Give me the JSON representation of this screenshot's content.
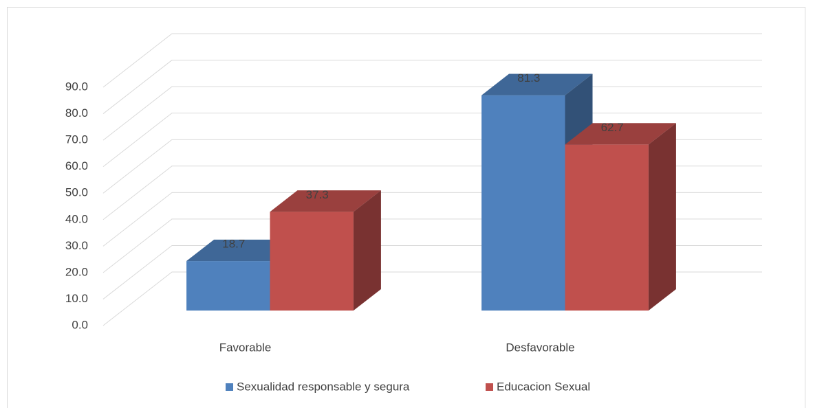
{
  "chart_data": {
    "type": "bar3d",
    "categories": [
      "Favorable",
      "Desfavorable"
    ],
    "series": [
      {
        "name": "Sexualidad responsable y segura",
        "color": "#4f81bd",
        "values": [
          18.7,
          81.3
        ]
      },
      {
        "name": "Educacion Sexual",
        "color": "#c0504d",
        "values": [
          37.3,
          62.7
        ]
      }
    ],
    "ylim": [
      0,
      90
    ],
    "yticks": [
      {
        "value": 0,
        "label": "0.0"
      },
      {
        "value": 10,
        "label": "10.0"
      },
      {
        "value": 20,
        "label": "20.0"
      },
      {
        "value": 30,
        "label": "30.0"
      },
      {
        "value": 40,
        "label": "40.0"
      },
      {
        "value": 50,
        "label": "50.0"
      },
      {
        "value": 60,
        "label": "60.0"
      },
      {
        "value": 70,
        "label": "70.0"
      },
      {
        "value": 80,
        "label": "80.0"
      },
      {
        "value": 90,
        "label": "90.0"
      }
    ],
    "grid": true,
    "legend": "bottom"
  }
}
